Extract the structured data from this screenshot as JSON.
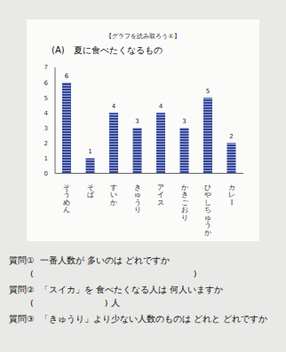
{
  "header": {
    "title": "【グラフを読み取ろう①】"
  },
  "chart_data": {
    "type": "bar",
    "title": "(A)　夏に食べたくなるもの",
    "categories": [
      "そうめん",
      "そば",
      "すいか",
      "きゅうり",
      "アイス",
      "かきごおり",
      "ひやしちゅうか",
      "カレー"
    ],
    "values": [
      6,
      1,
      4,
      3,
      4,
      3,
      5,
      2
    ],
    "color": "#34469a",
    "ylim": [
      0,
      7
    ],
    "yticks": [
      0,
      1,
      2,
      3,
      4,
      5,
      6,
      7
    ],
    "grid": false,
    "data_labels": true
  },
  "questions": [
    {
      "label": "質問①",
      "text": "一番人数が 多いのは どれですか",
      "answer_open": "(",
      "answer_close": ")"
    },
    {
      "label": "質問②",
      "text": "「スイカ」を 食べたくなる人は 何人いますか",
      "answer_open": "(",
      "answer_close": ")",
      "answer_unit": "人"
    },
    {
      "label": "質問③",
      "text": "「きゅうり」より少ない人数のものは どれと どれですか"
    }
  ]
}
